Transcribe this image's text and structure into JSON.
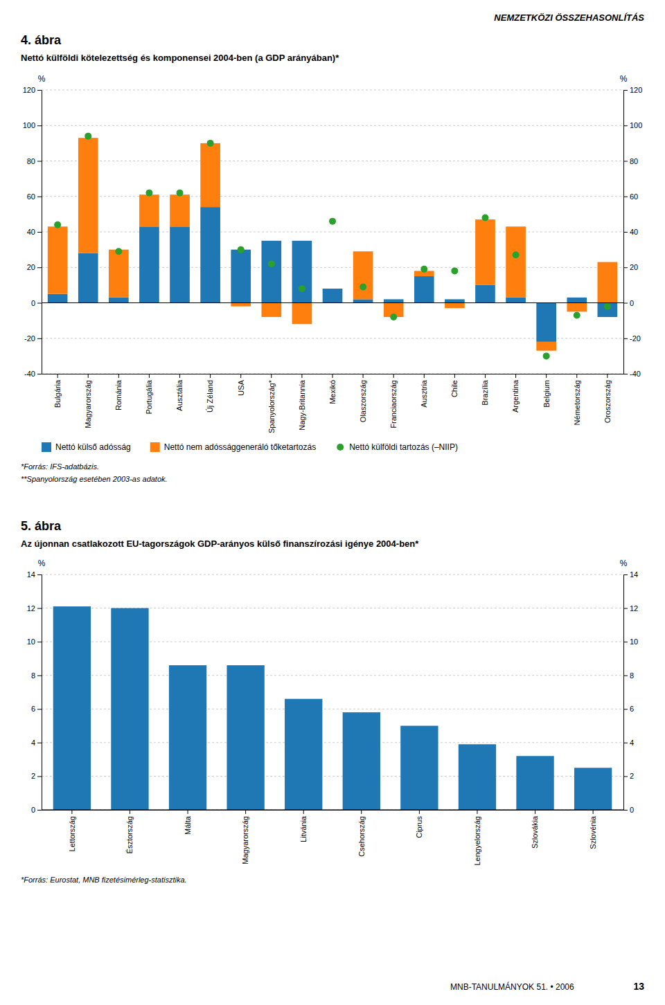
{
  "chart_data": [
    {
      "type": "bar",
      "stacked": true,
      "title": "4. ábra",
      "subtitle": "Nettó külföldi kötelezettség és komponensei 2004-ben (a GDP arányában)*",
      "categories": [
        "Bulgária",
        "Magyarország",
        "Románia",
        "Portugália",
        "Ausztália",
        "Új Zéland",
        "USA",
        "Spanyolország*",
        "Nagy-Britannia",
        "Mexikó",
        "Olaszország",
        "Franciaország",
        "Ausztria",
        "Chile",
        "Brazília",
        "Argentina",
        "Belgium",
        "Németország",
        "Oroszország"
      ],
      "series": [
        {
          "name": "Nettó külső adósság",
          "values": [
            5,
            28,
            3,
            43,
            43,
            54,
            30,
            35,
            35,
            8,
            2,
            2,
            15,
            2,
            10,
            3,
            -22,
            3,
            -8
          ]
        },
        {
          "name": "Nettó nem adóssággeneráló tőketartozás",
          "values": [
            38,
            65,
            27,
            18,
            18,
            36,
            -2,
            -8,
            -12,
            0,
            27,
            -8,
            3,
            -3,
            37,
            40,
            -5,
            -5,
            23
          ]
        },
        {
          "name": "Nettó külföldi tartozás (–NIIP)",
          "type": "scatter",
          "marker": "circle",
          "values": [
            44,
            94,
            29,
            62,
            62,
            90,
            30,
            22,
            8,
            46,
            9,
            -8,
            19,
            18,
            48,
            27,
            -30,
            -7,
            -2
          ]
        }
      ],
      "ylim": [
        -40,
        120
      ],
      "yticks": [
        -40,
        -20,
        0,
        20,
        40,
        60,
        80,
        100,
        120
      ],
      "y2lim": [
        -40,
        120
      ],
      "y2ticks": [
        -40,
        -20,
        0,
        20,
        40,
        60,
        80,
        100,
        120
      ],
      "ylabel": "%",
      "y2label": "%",
      "grid": true,
      "legend": "bottom",
      "footnotes": [
        "*Forrás: IFS-adatbázis.",
        "**Spanyolország esetében 2003-as adatok."
      ]
    },
    {
      "type": "bar",
      "title": "5. ábra",
      "subtitle": "Az újonnan csatlakozott EU-tagországok GDP-arányos külső finanszírozási igénye 2004-ben*",
      "categories": [
        "Lettország",
        "Észtország",
        "Málta",
        "Magyarország",
        "Litvánia",
        "Csehország",
        "Ciprus",
        "Lengyelország",
        "Szlovákia",
        "Szlovénia"
      ],
      "values": [
        12.1,
        12.0,
        8.6,
        8.6,
        6.6,
        5.8,
        5.0,
        3.9,
        3.2,
        2.5
      ],
      "ylim": [
        0,
        14
      ],
      "yticks": [
        0,
        2,
        4,
        6,
        8,
        10,
        12,
        14
      ],
      "y2lim": [
        0,
        14
      ],
      "y2ticks": [
        0,
        2,
        4,
        6,
        8,
        10,
        12,
        14
      ],
      "ylabel": "%",
      "y2label": "%",
      "grid": true,
      "footnotes": [
        "*Forrás: Eurostat, MNB fizetésimérleg-statisztika."
      ]
    }
  ],
  "header": "NEMZETKÖZI ÖSSZEHASONLÍTÁS",
  "footer": "MNB-TANULMÁNYOK 51. • 2006",
  "page_number": "13"
}
